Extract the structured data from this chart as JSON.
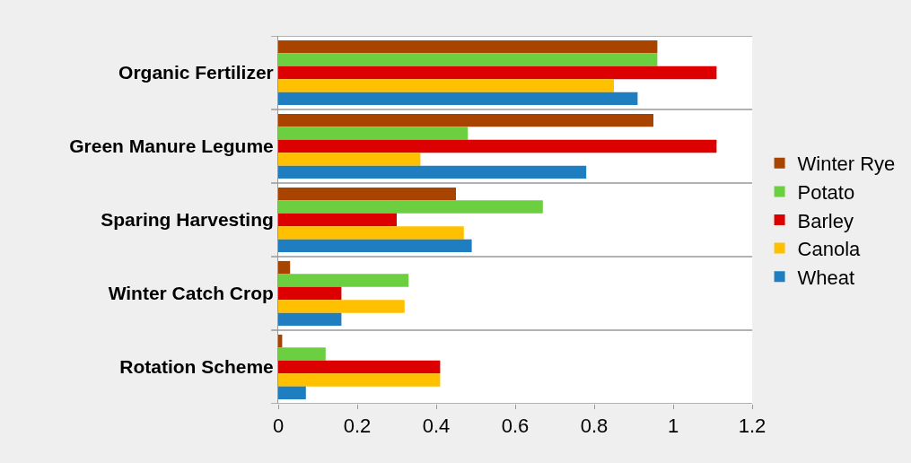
{
  "chart_data": {
    "type": "bar",
    "orientation": "horizontal",
    "categories": [
      "Organic Fertilizer",
      "Green Manure Legume",
      "Sparing Harvesting",
      "Winter Catch Crop",
      "Rotation Scheme"
    ],
    "series": [
      {
        "name": "Winter Rye",
        "color": "#a94400",
        "values": [
          0.96,
          0.95,
          0.45,
          0.03,
          0.01
        ]
      },
      {
        "name": "Potato",
        "color": "#6bcf3f",
        "values": [
          0.96,
          0.48,
          0.67,
          0.33,
          0.12
        ]
      },
      {
        "name": "Barley",
        "color": "#dd0000",
        "values": [
          1.11,
          1.11,
          0.3,
          0.16,
          0.41
        ]
      },
      {
        "name": "Canola",
        "color": "#ffc000",
        "values": [
          0.85,
          0.36,
          0.47,
          0.32,
          0.41
        ]
      },
      {
        "name": "Wheat",
        "color": "#1f7ec0",
        "values": [
          0.91,
          0.78,
          0.49,
          0.16,
          0.07
        ]
      }
    ],
    "xlim": [
      0,
      1.2
    ],
    "xticks": [
      0,
      0.2,
      0.4,
      0.6,
      0.8,
      1,
      1.2
    ],
    "grid": "y",
    "legend": "right"
  }
}
